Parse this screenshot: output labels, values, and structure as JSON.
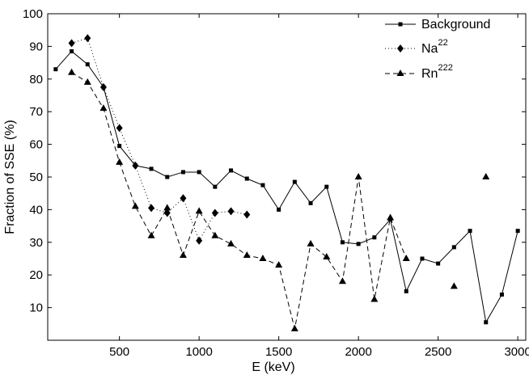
{
  "chart_data": {
    "type": "line",
    "xlabel": "E (keV)",
    "ylabel": "Fraction of  SSE (%)",
    "xlim": [
      50,
      3050
    ],
    "ylim": [
      0,
      100
    ],
    "x_ticks": [
      500,
      1000,
      1500,
      2000,
      2500,
      3000
    ],
    "y_ticks": [
      10,
      20,
      30,
      40,
      50,
      60,
      70,
      80,
      90,
      100
    ],
    "grid": false,
    "legend_position": "top-right",
    "series": [
      {
        "name": "Background",
        "line_style": "solid",
        "marker": "square",
        "segments": [
          [
            [
              100,
              83
            ],
            [
              200,
              88.5
            ],
            [
              300,
              84.5
            ],
            [
              400,
              77.5
            ],
            [
              500,
              59.5
            ],
            [
              600,
              53.5
            ],
            [
              700,
              52.5
            ],
            [
              800,
              50
            ],
            [
              900,
              51.5
            ],
            [
              1000,
              51.5
            ],
            [
              1100,
              47
            ],
            [
              1200,
              52
            ],
            [
              1300,
              49.5
            ],
            [
              1400,
              47.5
            ],
            [
              1500,
              40
            ],
            [
              1600,
              48.5
            ],
            [
              1700,
              42
            ],
            [
              1800,
              47
            ],
            [
              1900,
              30
            ],
            [
              2000,
              29.5
            ],
            [
              2100,
              31.5
            ],
            [
              2200,
              37
            ],
            [
              2300,
              15
            ],
            [
              2400,
              25
            ],
            [
              2500,
              23.5
            ],
            [
              2600,
              28.5
            ],
            [
              2700,
              33.5
            ],
            [
              2800,
              5.5
            ],
            [
              2900,
              14
            ],
            [
              3000,
              33.5
            ]
          ]
        ]
      },
      {
        "name": "Na",
        "name_superscript": "22",
        "line_style": "dotted",
        "marker": "diamond",
        "segments": [
          [
            [
              200,
              91
            ],
            [
              300,
              92.5
            ],
            [
              400,
              77.5
            ],
            [
              500,
              65
            ],
            [
              600,
              53.5
            ],
            [
              700,
              40.5
            ],
            [
              800,
              39
            ],
            [
              900,
              43.5
            ],
            [
              1000,
              30.5
            ],
            [
              1100,
              39
            ],
            [
              1200,
              39.5
            ],
            [
              1300,
              38.5
            ]
          ]
        ]
      },
      {
        "name": "Rn",
        "name_superscript": "222",
        "line_style": "dashed",
        "marker": "triangle",
        "segments": [
          [
            [
              200,
              82
            ],
            [
              300,
              79
            ],
            [
              400,
              71
            ],
            [
              500,
              54.5
            ],
            [
              600,
              41
            ],
            [
              700,
              32
            ],
            [
              800,
              40.5
            ],
            [
              900,
              26
            ],
            [
              1000,
              39.5
            ],
            [
              1100,
              32
            ],
            [
              1200,
              29.5
            ],
            [
              1300,
              26
            ],
            [
              1400,
              25
            ],
            [
              1500,
              23
            ],
            [
              1600,
              3.5
            ],
            [
              1700,
              29.5
            ],
            [
              1800,
              25.5
            ],
            [
              1900,
              18
            ],
            [
              2000,
              50
            ],
            [
              2100,
              12.5
            ],
            [
              2200,
              37.5
            ],
            [
              2300,
              25
            ]
          ],
          [
            [
              2600,
              16.5
            ]
          ],
          [
            [
              2800,
              50
            ]
          ]
        ]
      }
    ]
  }
}
